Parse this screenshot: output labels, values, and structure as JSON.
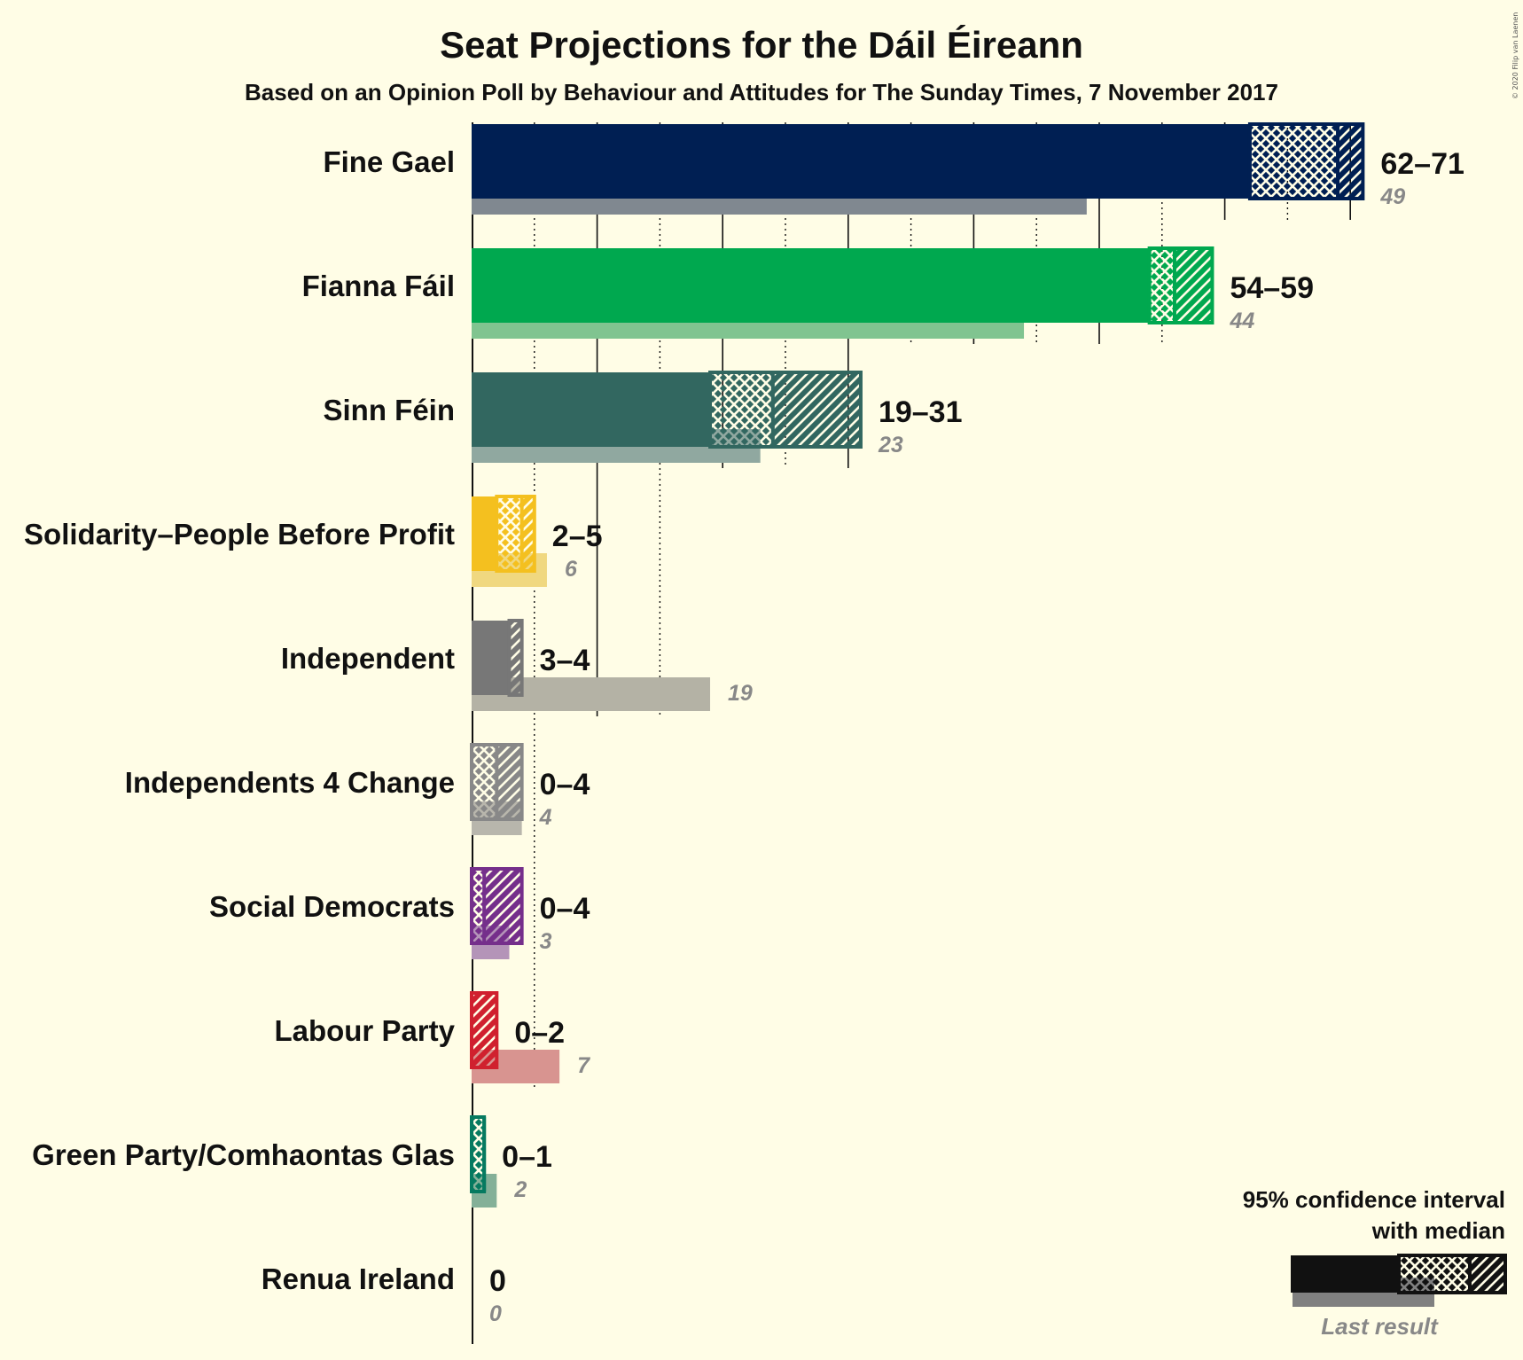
{
  "copyright": "© 2020 Filip van Laenen",
  "legend": {
    "line1": "95% confidence interval",
    "line2": "with median",
    "last_result": "Last result"
  },
  "chart_data": {
    "type": "bar",
    "title": "Seat Projections for the Dáil Éireann",
    "subtitle": "Based on an Opinion Poll by Behaviour and Attitudes for The Sunday Times, 7 November 2017",
    "xlim": [
      0,
      71
    ],
    "gridlines": [
      5,
      10,
      15,
      20,
      25,
      30,
      35,
      40,
      45,
      50,
      55,
      60,
      65,
      70
    ],
    "series": [
      {
        "name": "Fine Gael",
        "low": 62,
        "median": 69,
        "high": 71,
        "last": 49,
        "range_label": "62–71",
        "last_label": "49",
        "color": "#001F53",
        "last_color": "#808890"
      },
      {
        "name": "Fianna Fáil",
        "low": 54,
        "median": 56,
        "high": 59,
        "last": 44,
        "range_label": "54–59",
        "last_label": "44",
        "color": "#00A84F",
        "last_color": "#80C490"
      },
      {
        "name": "Sinn Féin",
        "low": 19,
        "median": 24,
        "high": 31,
        "last": 23,
        "range_label": "19–31",
        "last_label": "23",
        "color": "#326760",
        "last_color": "#90A8A0"
      },
      {
        "name": "Solidarity–People Before Profit",
        "low": 2,
        "median": 4,
        "high": 5,
        "last": 6,
        "range_label": "2–5",
        "last_label": "6",
        "color": "#F4C01F",
        "last_color": "#F0D880"
      },
      {
        "name": "Independent",
        "low": 3,
        "median": 3,
        "high": 4,
        "last": 19,
        "range_label": "3–4",
        "last_label": "19",
        "color": "#777777",
        "last_color": "#B4B2A5"
      },
      {
        "name": "Independents 4 Change",
        "low": 0,
        "median": 2,
        "high": 4,
        "last": 4,
        "range_label": "0–4",
        "last_label": "4",
        "color": "#888888",
        "last_color": "#B8B6AC"
      },
      {
        "name": "Social Democrats",
        "low": 0,
        "median": 1,
        "high": 4,
        "last": 3,
        "range_label": "0–4",
        "last_label": "3",
        "color": "#752F8B",
        "last_color": "#B494B8"
      },
      {
        "name": "Labour Party",
        "low": 0,
        "median": 0,
        "high": 2,
        "last": 7,
        "range_label": "0–2",
        "last_label": "7",
        "color": "#D0202E",
        "last_color": "#D89490"
      },
      {
        "name": "Green Party/Comhaontas Glas",
        "low": 0,
        "median": 1,
        "high": 1,
        "last": 2,
        "range_label": "0–1",
        "last_label": "2",
        "color": "#067A60",
        "last_color": "#84B098"
      },
      {
        "name": "Renua Ireland",
        "low": 0,
        "median": 0,
        "high": 0,
        "last": 0,
        "range_label": "0",
        "last_label": "0",
        "color": "#333333",
        "last_color": "#999999"
      }
    ]
  }
}
